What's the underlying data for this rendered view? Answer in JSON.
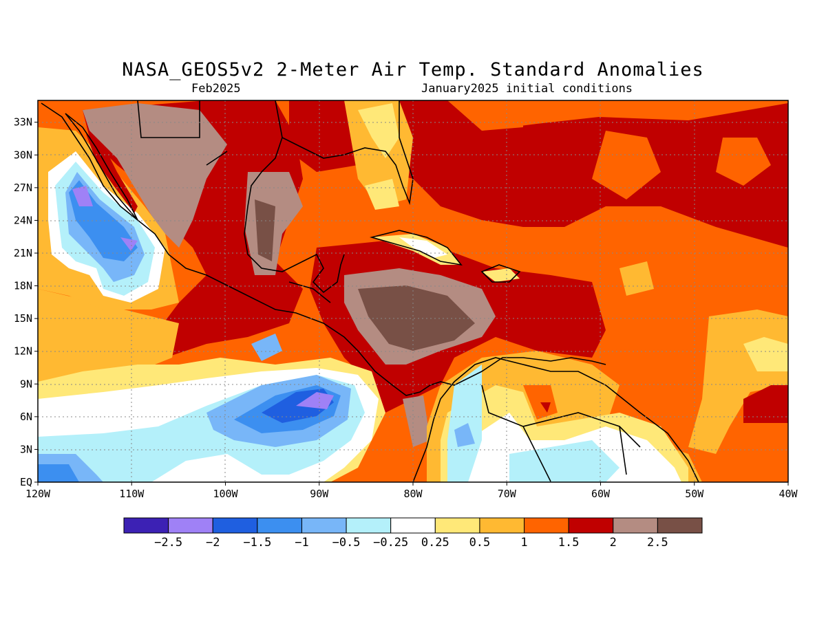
{
  "header": {
    "title": "NASA_GEOS5v2 2-Meter Air Temp. Standard Anomalies",
    "valid": "Feb2025",
    "init": "January2025 initial conditions"
  },
  "map": {
    "lon_range": [
      -120,
      -40
    ],
    "lat_range": [
      0,
      35
    ],
    "x_ticks": [
      {
        "lon": -120,
        "label": "120W"
      },
      {
        "lon": -110,
        "label": "110W"
      },
      {
        "lon": -100,
        "label": "100W"
      },
      {
        "lon": -90,
        "label": "90W"
      },
      {
        "lon": -80,
        "label": "80W"
      },
      {
        "lon": -70,
        "label": "70W"
      },
      {
        "lon": -60,
        "label": "60W"
      },
      {
        "lon": -50,
        "label": "50W"
      },
      {
        "lon": -40,
        "label": "40W"
      }
    ],
    "y_ticks": [
      {
        "lat": 0,
        "label": "EQ"
      },
      {
        "lat": 3,
        "label": "3N"
      },
      {
        "lat": 6,
        "label": "6N"
      },
      {
        "lat": 9,
        "label": "9N"
      },
      {
        "lat": 12,
        "label": "12N"
      },
      {
        "lat": 15,
        "label": "15N"
      },
      {
        "lat": 18,
        "label": "18N"
      },
      {
        "lat": 21,
        "label": "21N"
      },
      {
        "lat": 24,
        "label": "24N"
      },
      {
        "lat": 27,
        "label": "27N"
      },
      {
        "lat": 30,
        "label": "30N"
      },
      {
        "lat": 33,
        "label": "33N"
      }
    ],
    "grid": "dotted"
  },
  "colorbar": {
    "colors": [
      "#3c21b4",
      "#9f81f6",
      "#1f5fe0",
      "#3c8ff0",
      "#78b6f8",
      "#b4f0fa",
      "#ffffff",
      "#ffe878",
      "#ffb932",
      "#ff6400",
      "#c00000",
      "#b48c82",
      "#785046"
    ],
    "labels": [
      "-2.5",
      "-2",
      "-1.5",
      "-1",
      "-0.5",
      "-0.25",
      "0.25",
      "0.5",
      "1",
      "1.5",
      "2",
      "2.5"
    ]
  }
}
